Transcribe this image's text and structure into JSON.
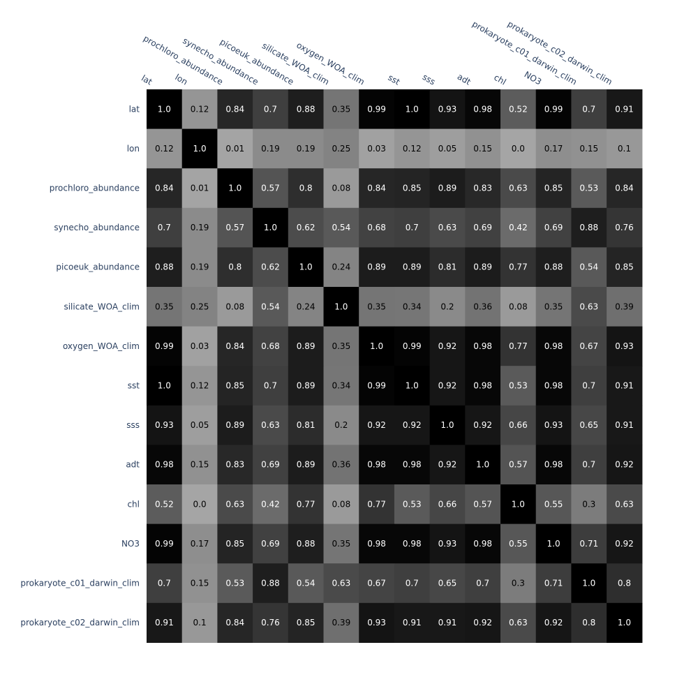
{
  "chart_data": {
    "type": "heatmap",
    "colorscale": [
      "#ffffff",
      "#000000"
    ],
    "label_color_dark": "#000000",
    "label_color_light": "#ffffff",
    "axis_label_color": "#2a3f5f",
    "x_labels": [
      "lat",
      "lon",
      "prochloro_abundance",
      "synecho_abundance",
      "picoeuk_abundance",
      "silicate_WOA_clim",
      "oxygen_WOA_clim",
      "sst",
      "sss",
      "adt",
      "chl",
      "NO3",
      "prokaryote_c01_darwin_clim",
      "prokaryote_c02_darwin_clim"
    ],
    "y_labels": [
      "lat",
      "lon",
      "prochloro_abundance",
      "synecho_abundance",
      "picoeuk_abundance",
      "silicate_WOA_clim",
      "oxygen_WOA_clim",
      "sst",
      "sss",
      "adt",
      "chl",
      "NO3",
      "prokaryote_c01_darwin_clim",
      "prokaryote_c02_darwin_clim"
    ],
    "x_axis_side": "top",
    "value_range": [
      0,
      1
    ],
    "values": [
      [
        "1.0",
        "0.12",
        "0.84",
        "0.7",
        "0.88",
        "0.35",
        "0.99",
        "1.0",
        "0.93",
        "0.98",
        "0.52",
        "0.99",
        "0.7",
        "0.91"
      ],
      [
        "0.12",
        "1.0",
        "0.01",
        "0.19",
        "0.19",
        "0.25",
        "0.03",
        "0.12",
        "0.05",
        "0.15",
        "0.0",
        "0.17",
        "0.15",
        "0.1"
      ],
      [
        "0.84",
        "0.01",
        "1.0",
        "0.57",
        "0.8",
        "0.08",
        "0.84",
        "0.85",
        "0.89",
        "0.83",
        "0.63",
        "0.85",
        "0.53",
        "0.84"
      ],
      [
        "0.7",
        "0.19",
        "0.57",
        "1.0",
        "0.62",
        "0.54",
        "0.68",
        "0.7",
        "0.63",
        "0.69",
        "0.42",
        "0.69",
        "0.88",
        "0.76"
      ],
      [
        "0.88",
        "0.19",
        "0.8",
        "0.62",
        "1.0",
        "0.24",
        "0.89",
        "0.89",
        "0.81",
        "0.89",
        "0.77",
        "0.88",
        "0.54",
        "0.85"
      ],
      [
        "0.35",
        "0.25",
        "0.08",
        "0.54",
        "0.24",
        "1.0",
        "0.35",
        "0.34",
        "0.2",
        "0.36",
        "0.08",
        "0.35",
        "0.63",
        "0.39"
      ],
      [
        "0.99",
        "0.03",
        "0.84",
        "0.68",
        "0.89",
        "0.35",
        "1.0",
        "0.99",
        "0.92",
        "0.98",
        "0.77",
        "0.98",
        "0.67",
        "0.93"
      ],
      [
        "1.0",
        "0.12",
        "0.85",
        "0.7",
        "0.89",
        "0.34",
        "0.99",
        "1.0",
        "0.92",
        "0.98",
        "0.53",
        "0.98",
        "0.7",
        "0.91"
      ],
      [
        "0.93",
        "0.05",
        "0.89",
        "0.63",
        "0.81",
        "0.2",
        "0.92",
        "0.92",
        "1.0",
        "0.92",
        "0.66",
        "0.93",
        "0.65",
        "0.91"
      ],
      [
        "0.98",
        "0.15",
        "0.83",
        "0.69",
        "0.89",
        "0.36",
        "0.98",
        "0.98",
        "0.92",
        "1.0",
        "0.57",
        "0.98",
        "0.7",
        "0.92"
      ],
      [
        "0.52",
        "0.0",
        "0.63",
        "0.42",
        "0.77",
        "0.08",
        "0.77",
        "0.53",
        "0.66",
        "0.57",
        "1.0",
        "0.55",
        "0.3",
        "0.63"
      ],
      [
        "0.99",
        "0.17",
        "0.85",
        "0.69",
        "0.88",
        "0.35",
        "0.98",
        "0.98",
        "0.93",
        "0.98",
        "0.55",
        "1.0",
        "0.71",
        "0.92"
      ],
      [
        "0.7",
        "0.15",
        "0.53",
        "0.88",
        "0.54",
        "0.63",
        "0.67",
        "0.7",
        "0.65",
        "0.7",
        "0.3",
        "0.71",
        "1.0",
        "0.8"
      ],
      [
        "0.91",
        "0.1",
        "0.84",
        "0.76",
        "0.85",
        "0.39",
        "0.93",
        "0.91",
        "0.91",
        "0.92",
        "0.63",
        "0.92",
        "0.8",
        "1.0"
      ]
    ]
  }
}
